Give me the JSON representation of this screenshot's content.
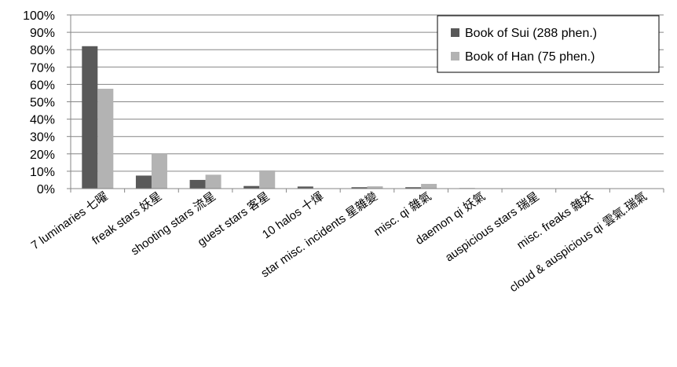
{
  "chart_data": {
    "type": "bar",
    "title": "",
    "xlabel": "",
    "ylabel": "",
    "ylim": [
      0,
      100
    ],
    "yticks": [
      "0%",
      "10%",
      "20%",
      "30%",
      "40%",
      "50%",
      "60%",
      "70%",
      "80%",
      "90%",
      "100%"
    ],
    "grid": true,
    "legend_position": "top-right",
    "categories": [
      "7 luminaries 七曜",
      "freak stars 妖星",
      "shooting stars 流星",
      "guest stars 客星",
      "10 halos 十煇",
      "star misc. incidents 星雜變",
      "misc. qi 雜氣",
      "daemon qi 妖氣",
      "auspicious stars 瑞星",
      "misc. freaks 雜妖",
      "cloud & auspicious qi 雲氣.瑞氣"
    ],
    "series": [
      {
        "name": "Book of Sui (288 phen.)",
        "color": "#595959",
        "values": [
          82,
          7.5,
          5,
          1.5,
          1.2,
          0.8,
          0.8,
          0.3,
          0,
          0,
          0
        ]
      },
      {
        "name": "Book of Han (75 phen.)",
        "color": "#b3b3b3",
        "values": [
          57.5,
          20,
          8,
          10.5,
          0,
          1.3,
          2.7,
          0,
          0,
          0,
          0
        ]
      }
    ]
  }
}
